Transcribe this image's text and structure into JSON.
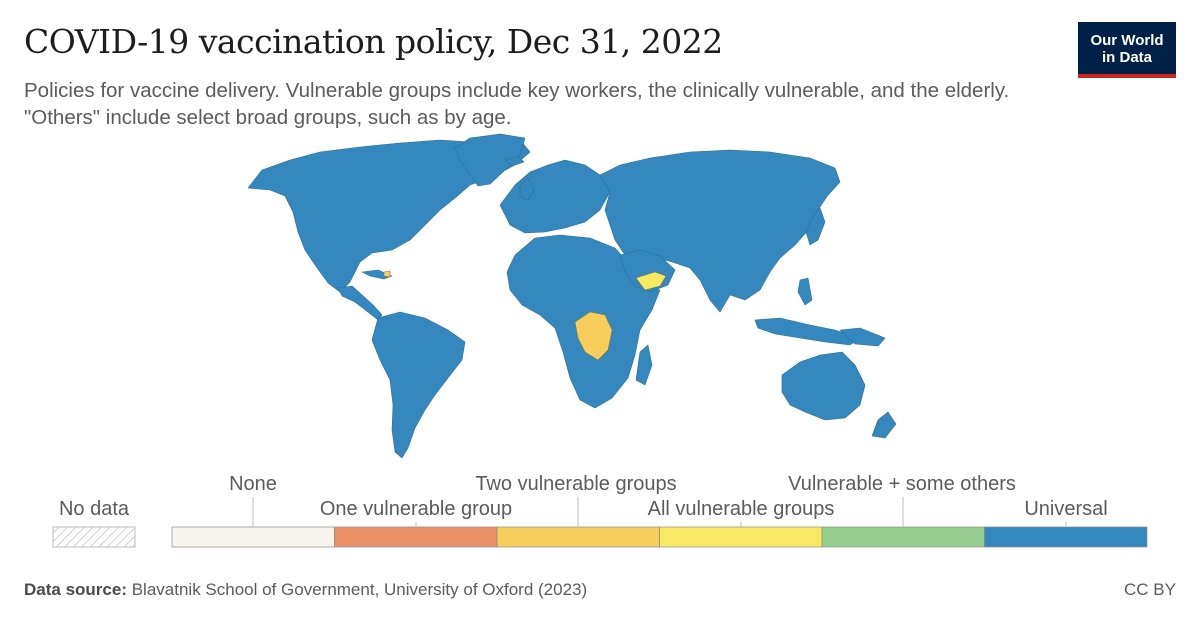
{
  "header": {
    "title": "COVID-19 vaccination policy, Dec 31, 2022",
    "subtitle": "Policies for vaccine delivery. Vulnerable groups include key workers, the clinically vulnerable, and the elderly. \"Others\" include select broad groups, such as by age."
  },
  "logo": {
    "line1": "Our World",
    "line2": "in Data"
  },
  "legend": {
    "no_data_label": "No data",
    "categories": [
      {
        "label": "None",
        "color": "#f7f4ee"
      },
      {
        "label": "One vulnerable group",
        "color": "#eb9067"
      },
      {
        "label": "Two vulnerable groups",
        "color": "#f7ce5c"
      },
      {
        "label": "All vulnerable groups",
        "color": "#f7e964"
      },
      {
        "label": "Vulnerable + some others",
        "color": "#97d08e"
      },
      {
        "label": "Universal",
        "color": "#3488bd"
      }
    ]
  },
  "map": {
    "default_fill": "#3488bd",
    "highlight_regions": [
      {
        "name": "Democratic Republic of Congo",
        "category": "Two vulnerable groups"
      },
      {
        "name": "Yemen",
        "category": "All vulnerable groups"
      },
      {
        "name": "Haiti",
        "category": "Two vulnerable groups"
      }
    ]
  },
  "footer": {
    "source_label": "Data source:",
    "source_text": "Blavatnik School of Government, University of Oxford (2023)",
    "license": "CC BY"
  }
}
